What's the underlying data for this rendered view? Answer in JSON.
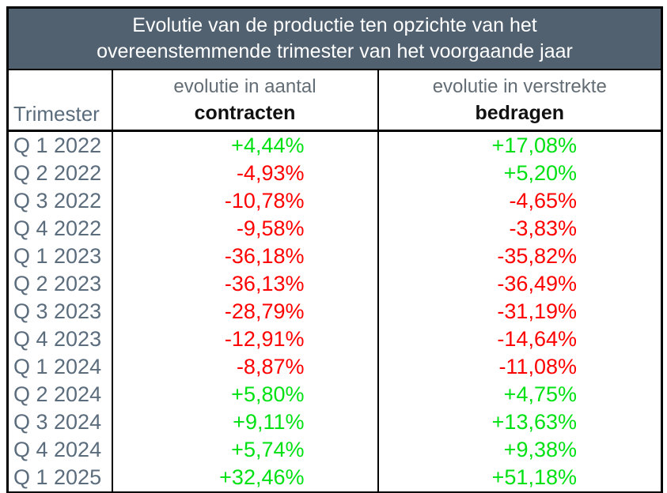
{
  "title": {
    "line1": "Evolutie van de productie ten opzichte van het",
    "line2": "overeenstemmende trimester van het voorgaande jaar"
  },
  "columns": {
    "quarter": "Trimester",
    "contracts_top": "evolutie in aantal",
    "contracts_bottom": "contracten",
    "amounts_top": "evolutie in verstrekte",
    "amounts_bottom": "bedragen"
  },
  "rows": [
    {
      "quarter": "Q 1 2022",
      "contracts": "+4,44%",
      "amounts": "+17,08%"
    },
    {
      "quarter": "Q 2 2022",
      "contracts": "-4,93%",
      "amounts": "+5,20%"
    },
    {
      "quarter": "Q 3 2022",
      "contracts": "-10,78%",
      "amounts": "-4,65%"
    },
    {
      "quarter": "Q 4 2022",
      "contracts": "-9,58%",
      "amounts": "-3,83%"
    },
    {
      "quarter": "Q 1 2023",
      "contracts": "-36,18%",
      "amounts": "-35,82%"
    },
    {
      "quarter": "Q 2 2023",
      "contracts": "-36,13%",
      "amounts": "-36,49%"
    },
    {
      "quarter": "Q 3 2023",
      "contracts": "-28,79%",
      "amounts": "-31,19%"
    },
    {
      "quarter": "Q 4 2023",
      "contracts": "-12,91%",
      "amounts": "-14,64%"
    },
    {
      "quarter": "Q 1 2024",
      "contracts": "-8,87%",
      "amounts": "-11,08%"
    },
    {
      "quarter": "Q 2 2024",
      "contracts": "+5,80%",
      "amounts": "+4,75%"
    },
    {
      "quarter": "Q 3 2024",
      "contracts": "+9,11%",
      "amounts": "+13,63%"
    },
    {
      "quarter": "Q 4 2024",
      "contracts": "+5,74%",
      "amounts": "+9,38%"
    },
    {
      "quarter": "Q 1 2025",
      "contracts": "+32,46%",
      "amounts": "+51,18%"
    }
  ],
  "colors": {
    "header_bg": "#516170",
    "header_text": "#ffffff",
    "subhead_text": "#636d75",
    "quarter_text": "#5b6c7c",
    "positive": "#00e113",
    "negative": "#ff0000",
    "border": "#000000"
  },
  "chart_data": {
    "type": "table",
    "title": "Evolutie van de productie ten opzichte van het overeenstemmende trimester van het voorgaande jaar",
    "categories": [
      "Q 1 2022",
      "Q 2 2022",
      "Q 3 2022",
      "Q 4 2022",
      "Q 1 2023",
      "Q 2 2023",
      "Q 3 2023",
      "Q 4 2023",
      "Q 1 2024",
      "Q 2 2024",
      "Q 3 2024",
      "Q 4 2024",
      "Q 1 2025"
    ],
    "series": [
      {
        "name": "evolutie in aantal contracten",
        "values": [
          4.44,
          -4.93,
          -10.78,
          -9.58,
          -36.18,
          -36.13,
          -28.79,
          -12.91,
          -8.87,
          5.8,
          9.11,
          5.74,
          32.46
        ]
      },
      {
        "name": "evolutie in verstrekte bedragen",
        "values": [
          17.08,
          5.2,
          -4.65,
          -3.83,
          -35.82,
          -36.49,
          -31.19,
          -14.64,
          -11.08,
          4.75,
          13.63,
          9.38,
          51.18
        ]
      }
    ],
    "value_format": "percent, comma decimal separator, explicit sign",
    "color_rule": "positive values green, negative values red"
  }
}
